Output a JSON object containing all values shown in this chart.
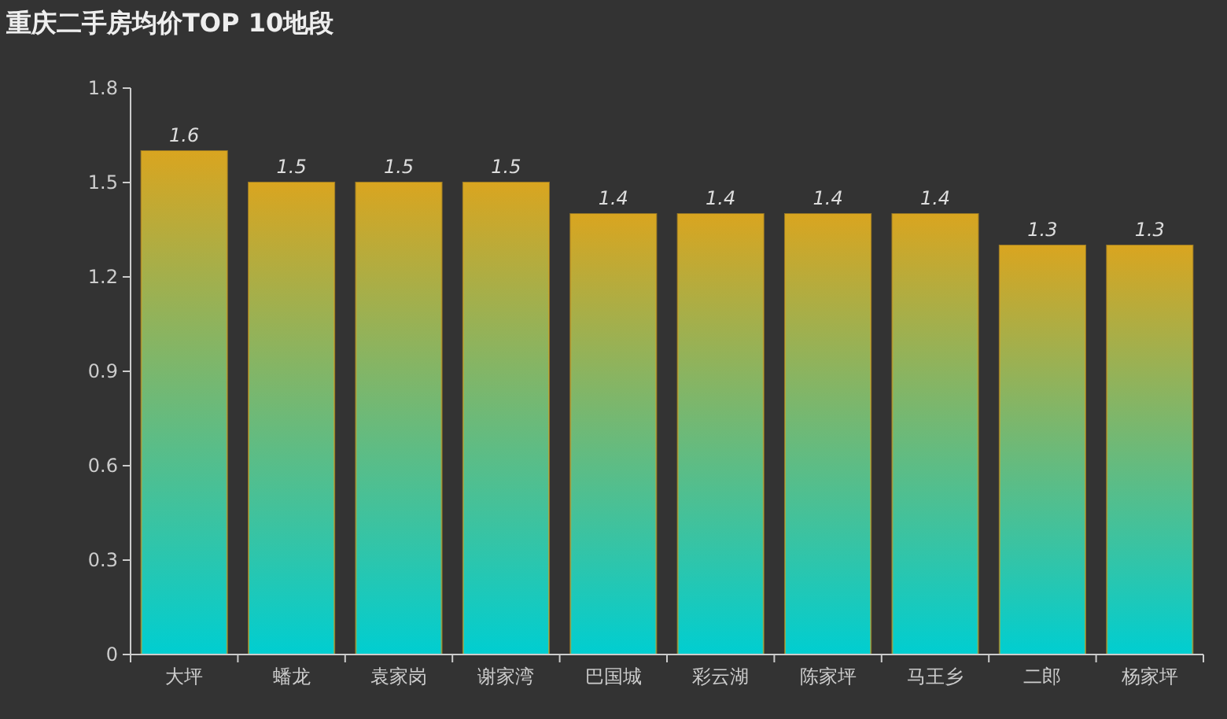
{
  "chart_data": {
    "type": "bar",
    "title": "重庆二手房均价TOP 10地段",
    "categories": [
      "大坪",
      "蟠龙",
      "袁家岗",
      "谢家湾",
      "巴国城",
      "彩云湖",
      "陈家坪",
      "马王乡",
      "二郎",
      "杨家坪"
    ],
    "series": [
      {
        "color": "#d9a520",
        "values": [
          1.6,
          1.5,
          1.5,
          1.5,
          1.4,
          1.4,
          1.4,
          1.4,
          1.3,
          1.3
        ]
      }
    ],
    "ylim": [
      0,
      1.8
    ],
    "yticks": [
      0,
      0.3,
      0.6,
      0.9,
      1.2,
      1.5,
      1.8
    ],
    "data_labels": true
  }
}
